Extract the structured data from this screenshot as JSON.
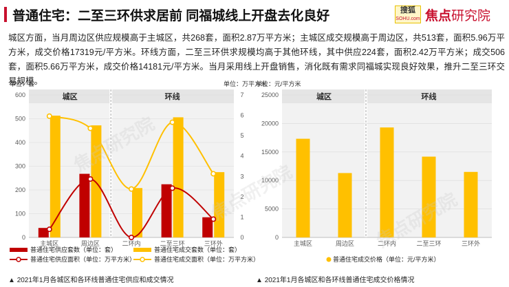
{
  "header": {
    "title": "普通住宅：二至三环供求居前 同福城线上开盘去化良好",
    "logo_sohu_line1": "搜狐",
    "logo_sohu_line2": "SOHU.com",
    "logo_jd_main": "焦点",
    "logo_jd_rest": "研究院"
  },
  "paragraph": "城区方面，当月周边区供应规模高于主城区，共268套，面积2.87万平方米；主城区成交规模高于周边区，共513套，面积5.96万平方米，成交价格17319元/平方米。环线方面，二至三环供求规模均高于其他环线，其中供应224套，面积2.42万平方米；成交506套，面积5.66万平方米，成交价格14181元/平方米。当月采用线上开盘销售，消化既有需求同福城实现良好效果，推升二至三环交易规模。",
  "watermark": "焦点研究院",
  "left_caption": "2021年1月各城区和各环线普通住宅供应和成交情况",
  "right_caption": "2021年1月各城区和各环线普通住宅成交价格情况",
  "colors": {
    "supply": "#c00000",
    "sales": "#ffc000",
    "shade": "#e5e5e5",
    "grid": "#d9d9d9",
    "axis_text": "#595959",
    "divider": "#a6a6a6"
  },
  "chart_data": [
    {
      "type": "bar",
      "left_unit": "单位：套",
      "right_unit": "单位：万平方米",
      "group_labels": [
        "城区",
        "环线"
      ],
      "categories": [
        "主城区",
        "周边区",
        "二环内",
        "二至三环",
        "三环外"
      ],
      "ylim_left": [
        0,
        600
      ],
      "yticks_left": [
        0,
        100,
        200,
        300,
        400,
        500,
        600
      ],
      "ylim_right": [
        0,
        7
      ],
      "yticks_right": [
        0,
        1,
        2,
        3,
        4,
        5,
        6,
        7
      ],
      "grid": true,
      "legend_position": "bottom",
      "series": [
        {
          "name": "普通住宅供应套数（单位：套）",
          "kind": "bar",
          "axis": "left",
          "values": [
            40,
            268,
            0,
            224,
            85
          ]
        },
        {
          "name": "普通住宅成交套数（单位：套）",
          "kind": "bar",
          "axis": "left",
          "values": [
            513,
            472,
            208,
            506,
            275
          ]
        },
        {
          "name": "普通住宅供应面积（单位：万平方米）",
          "kind": "line",
          "axis": "right",
          "values": [
            0.4,
            2.87,
            0.0,
            2.42,
            0.9
          ]
        },
        {
          "name": "普通住宅成交面积（单位：万平方米）",
          "kind": "line",
          "axis": "right",
          "values": [
            5.96,
            5.36,
            2.38,
            5.66,
            3.13
          ]
        }
      ]
    },
    {
      "type": "bar",
      "left_unit": "单位：元/平方米",
      "group_labels": [
        "城区",
        "环线"
      ],
      "categories": [
        "主城区",
        "周边区",
        "二环内",
        "二至三环",
        "三环外"
      ],
      "ylim": [
        0,
        25000
      ],
      "yticks": [
        0,
        5000,
        10000,
        15000,
        20000,
        25000
      ],
      "grid": true,
      "legend_position": "bottom",
      "series": [
        {
          "name": "普通住宅成交价格（单位：元/平方米）",
          "values": [
            17319,
            11300,
            19300,
            14181,
            11500
          ]
        }
      ]
    }
  ]
}
